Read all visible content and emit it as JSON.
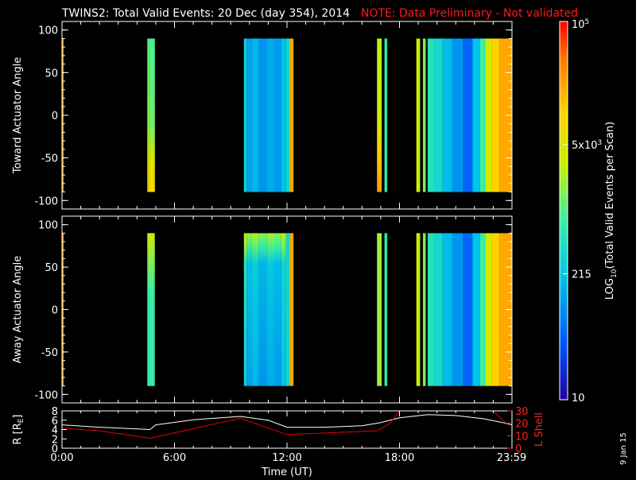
{
  "header": {
    "title": "TWINS2: Total Valid Events: 20 Dec (day 354), 2014",
    "note": "NOTE: Data Preliminary - Not validated"
  },
  "colorbar": {
    "label": "LOG10(Total Valid Events per Scan)",
    "label_parts": {
      "pre": "LOG",
      "sub": "10",
      "post": "(Total Valid Events per Scan)"
    },
    "ticks": [
      {
        "label": "10",
        "value": 10
      },
      {
        "label": "215",
        "value": 215
      },
      {
        "label": "5x10^3",
        "base": "5x10",
        "exp": "3",
        "value": 5000
      },
      {
        "label": "10^5",
        "base": "10",
        "exp": "5",
        "value": 100000
      }
    ],
    "range": [
      10,
      100000
    ],
    "scale": "log",
    "colormap": [
      "#1e00a0",
      "#0050ff",
      "#00c8e6",
      "#3cf0a0",
      "#c8f000",
      "#ffd200",
      "#ff7800",
      "#ff0000"
    ]
  },
  "date_stamp": "9 Jan 15",
  "chart_data": [
    {
      "type": "heatmap",
      "ylabel": "Toward Actuator Angle",
      "ylim": [
        -110,
        110
      ],
      "yticks": [
        100,
        50,
        0,
        -50,
        -100
      ],
      "xlim": [
        0,
        24
      ],
      "bins": [
        {
          "t0": 0.0,
          "t1": 0.08,
          "value": 20000,
          "grad": "low"
        },
        {
          "t0": 4.55,
          "t1": 4.65,
          "value": 1200,
          "grad": "hotlow"
        },
        {
          "t0": 4.65,
          "t1": 4.95,
          "value": 900,
          "grad": "hotlow"
        },
        {
          "t0": 9.7,
          "t1": 9.85,
          "value": 300,
          "grad": "none"
        },
        {
          "t0": 9.85,
          "t1": 10.1,
          "value": 120,
          "grad": "none"
        },
        {
          "t0": 10.1,
          "t1": 10.5,
          "value": 160,
          "grad": "none"
        },
        {
          "t0": 10.5,
          "t1": 10.9,
          "value": 100,
          "grad": "none"
        },
        {
          "t0": 10.9,
          "t1": 11.3,
          "value": 140,
          "grad": "none"
        },
        {
          "t0": 11.3,
          "t1": 11.7,
          "value": 110,
          "grad": "none"
        },
        {
          "t0": 11.7,
          "t1": 11.95,
          "value": 200,
          "grad": "none"
        },
        {
          "t0": 11.95,
          "t1": 12.15,
          "value": 350,
          "grad": "none"
        },
        {
          "t0": 12.15,
          "t1": 12.35,
          "value": 20000,
          "grad": "none"
        },
        {
          "t0": 16.8,
          "t1": 17.05,
          "value": 2500,
          "grad": "hotlow"
        },
        {
          "t0": 17.2,
          "t1": 17.35,
          "value": 600,
          "grad": "none"
        },
        {
          "t0": 18.9,
          "t1": 19.1,
          "value": 3000,
          "grad": "none"
        },
        {
          "t0": 19.25,
          "t1": 19.4,
          "value": 1500,
          "grad": "none"
        },
        {
          "t0": 19.5,
          "t1": 19.8,
          "value": 500,
          "grad": "none"
        },
        {
          "t0": 19.8,
          "t1": 20.3,
          "value": 350,
          "grad": "none"
        },
        {
          "t0": 20.3,
          "t1": 20.8,
          "value": 180,
          "grad": "none"
        },
        {
          "t0": 20.8,
          "t1": 21.4,
          "value": 100,
          "grad": "none"
        },
        {
          "t0": 21.4,
          "t1": 21.9,
          "value": 50,
          "grad": "none"
        },
        {
          "t0": 21.9,
          "t1": 22.3,
          "value": 200,
          "grad": "none"
        },
        {
          "t0": 22.3,
          "t1": 22.6,
          "value": 800,
          "grad": "none"
        },
        {
          "t0": 22.6,
          "t1": 22.9,
          "value": 4000,
          "grad": "none"
        },
        {
          "t0": 22.9,
          "t1": 23.3,
          "value": 10000,
          "grad": "none"
        },
        {
          "t0": 23.3,
          "t1": 24.0,
          "value": 20000,
          "grad": "none"
        }
      ]
    },
    {
      "type": "heatmap",
      "ylabel": "Away Actuator Angle",
      "ylim": [
        -110,
        110
      ],
      "yticks": [
        100,
        50,
        0,
        -50,
        -100
      ],
      "xlim": [
        0,
        24
      ],
      "bins": [
        {
          "t0": 0.0,
          "t1": 0.08,
          "value": 20000,
          "grad": "none"
        },
        {
          "t0": 4.55,
          "t1": 4.95,
          "value": 700,
          "grad": "hothigh"
        },
        {
          "t0": 9.7,
          "t1": 9.85,
          "value": 300,
          "grad": "top"
        },
        {
          "t0": 9.85,
          "t1": 10.1,
          "value": 120,
          "grad": "top"
        },
        {
          "t0": 10.1,
          "t1": 10.5,
          "value": 160,
          "grad": "top"
        },
        {
          "t0": 10.5,
          "t1": 10.9,
          "value": 100,
          "grad": "top"
        },
        {
          "t0": 10.9,
          "t1": 11.3,
          "value": 140,
          "grad": "top"
        },
        {
          "t0": 11.3,
          "t1": 11.7,
          "value": 110,
          "grad": "top"
        },
        {
          "t0": 11.7,
          "t1": 11.95,
          "value": 200,
          "grad": "top"
        },
        {
          "t0": 11.95,
          "t1": 12.15,
          "value": 350,
          "grad": "none"
        },
        {
          "t0": 12.15,
          "t1": 12.35,
          "value": 20000,
          "grad": "none"
        },
        {
          "t0": 16.8,
          "t1": 17.05,
          "value": 2000,
          "grad": "none"
        },
        {
          "t0": 17.2,
          "t1": 17.35,
          "value": 600,
          "grad": "none"
        },
        {
          "t0": 18.9,
          "t1": 19.1,
          "value": 3000,
          "grad": "none"
        },
        {
          "t0": 19.25,
          "t1": 19.4,
          "value": 1500,
          "grad": "none"
        },
        {
          "t0": 19.5,
          "t1": 19.8,
          "value": 500,
          "grad": "none"
        },
        {
          "t0": 19.8,
          "t1": 20.3,
          "value": 350,
          "grad": "none"
        },
        {
          "t0": 20.3,
          "t1": 20.8,
          "value": 180,
          "grad": "none"
        },
        {
          "t0": 20.8,
          "t1": 21.4,
          "value": 100,
          "grad": "none"
        },
        {
          "t0": 21.4,
          "t1": 21.9,
          "value": 50,
          "grad": "none"
        },
        {
          "t0": 21.9,
          "t1": 22.3,
          "value": 200,
          "grad": "none"
        },
        {
          "t0": 22.3,
          "t1": 22.6,
          "value": 800,
          "grad": "none"
        },
        {
          "t0": 22.6,
          "t1": 22.9,
          "value": 4000,
          "grad": "none"
        },
        {
          "t0": 22.9,
          "t1": 23.3,
          "value": 10000,
          "grad": "none"
        },
        {
          "t0": 23.3,
          "t1": 24.0,
          "value": 20000,
          "grad": "none"
        }
      ]
    },
    {
      "type": "line",
      "ylabel": "R [RE]",
      "ylabel_parts": {
        "pre": "R [R",
        "sub": "E",
        "post": "]"
      },
      "ylabel_right": "L Shell",
      "ylim": [
        0,
        8
      ],
      "yticks": [
        8,
        6,
        4,
        2,
        0
      ],
      "ylim_right": [
        0,
        30
      ],
      "yticks_right": [
        30,
        20,
        10,
        0
      ],
      "xlim": [
        0,
        24
      ],
      "xticks": [
        {
          "value": 0,
          "label": "0:00"
        },
        {
          "value": 6,
          "label": "6:00"
        },
        {
          "value": 12,
          "label": "12:00"
        },
        {
          "value": 18,
          "label": "18:00"
        },
        {
          "value": 23.98,
          "label": "23:59"
        }
      ],
      "xlabel": "Time (UT)",
      "series": [
        {
          "axis": "left",
          "color": "#ffffff",
          "x": [
            0,
            2,
            4.7,
            5,
            7,
            9.5,
            11,
            12,
            14,
            16,
            17,
            18,
            19.5,
            21,
            22.5,
            23.5,
            24
          ],
          "y": [
            5.0,
            4.5,
            4.0,
            5.0,
            6.1,
            6.8,
            6.0,
            4.5,
            4.5,
            4.8,
            5.5,
            6.5,
            7.2,
            7.0,
            6.3,
            5.5,
            5.0
          ]
        },
        {
          "axis": "right",
          "color": "#e00000",
          "segments": [
            {
              "x": [
                0,
                2,
                4.7,
                9.5,
                12,
                16.8,
                17.5,
                18.0
              ],
              "y": [
                16,
                14,
                8,
                24,
                11,
                14,
                20,
                30
              ]
            },
            {
              "x": [
                23.0,
                23.7
              ],
              "y": [
                30,
                20
              ]
            }
          ]
        }
      ]
    }
  ]
}
